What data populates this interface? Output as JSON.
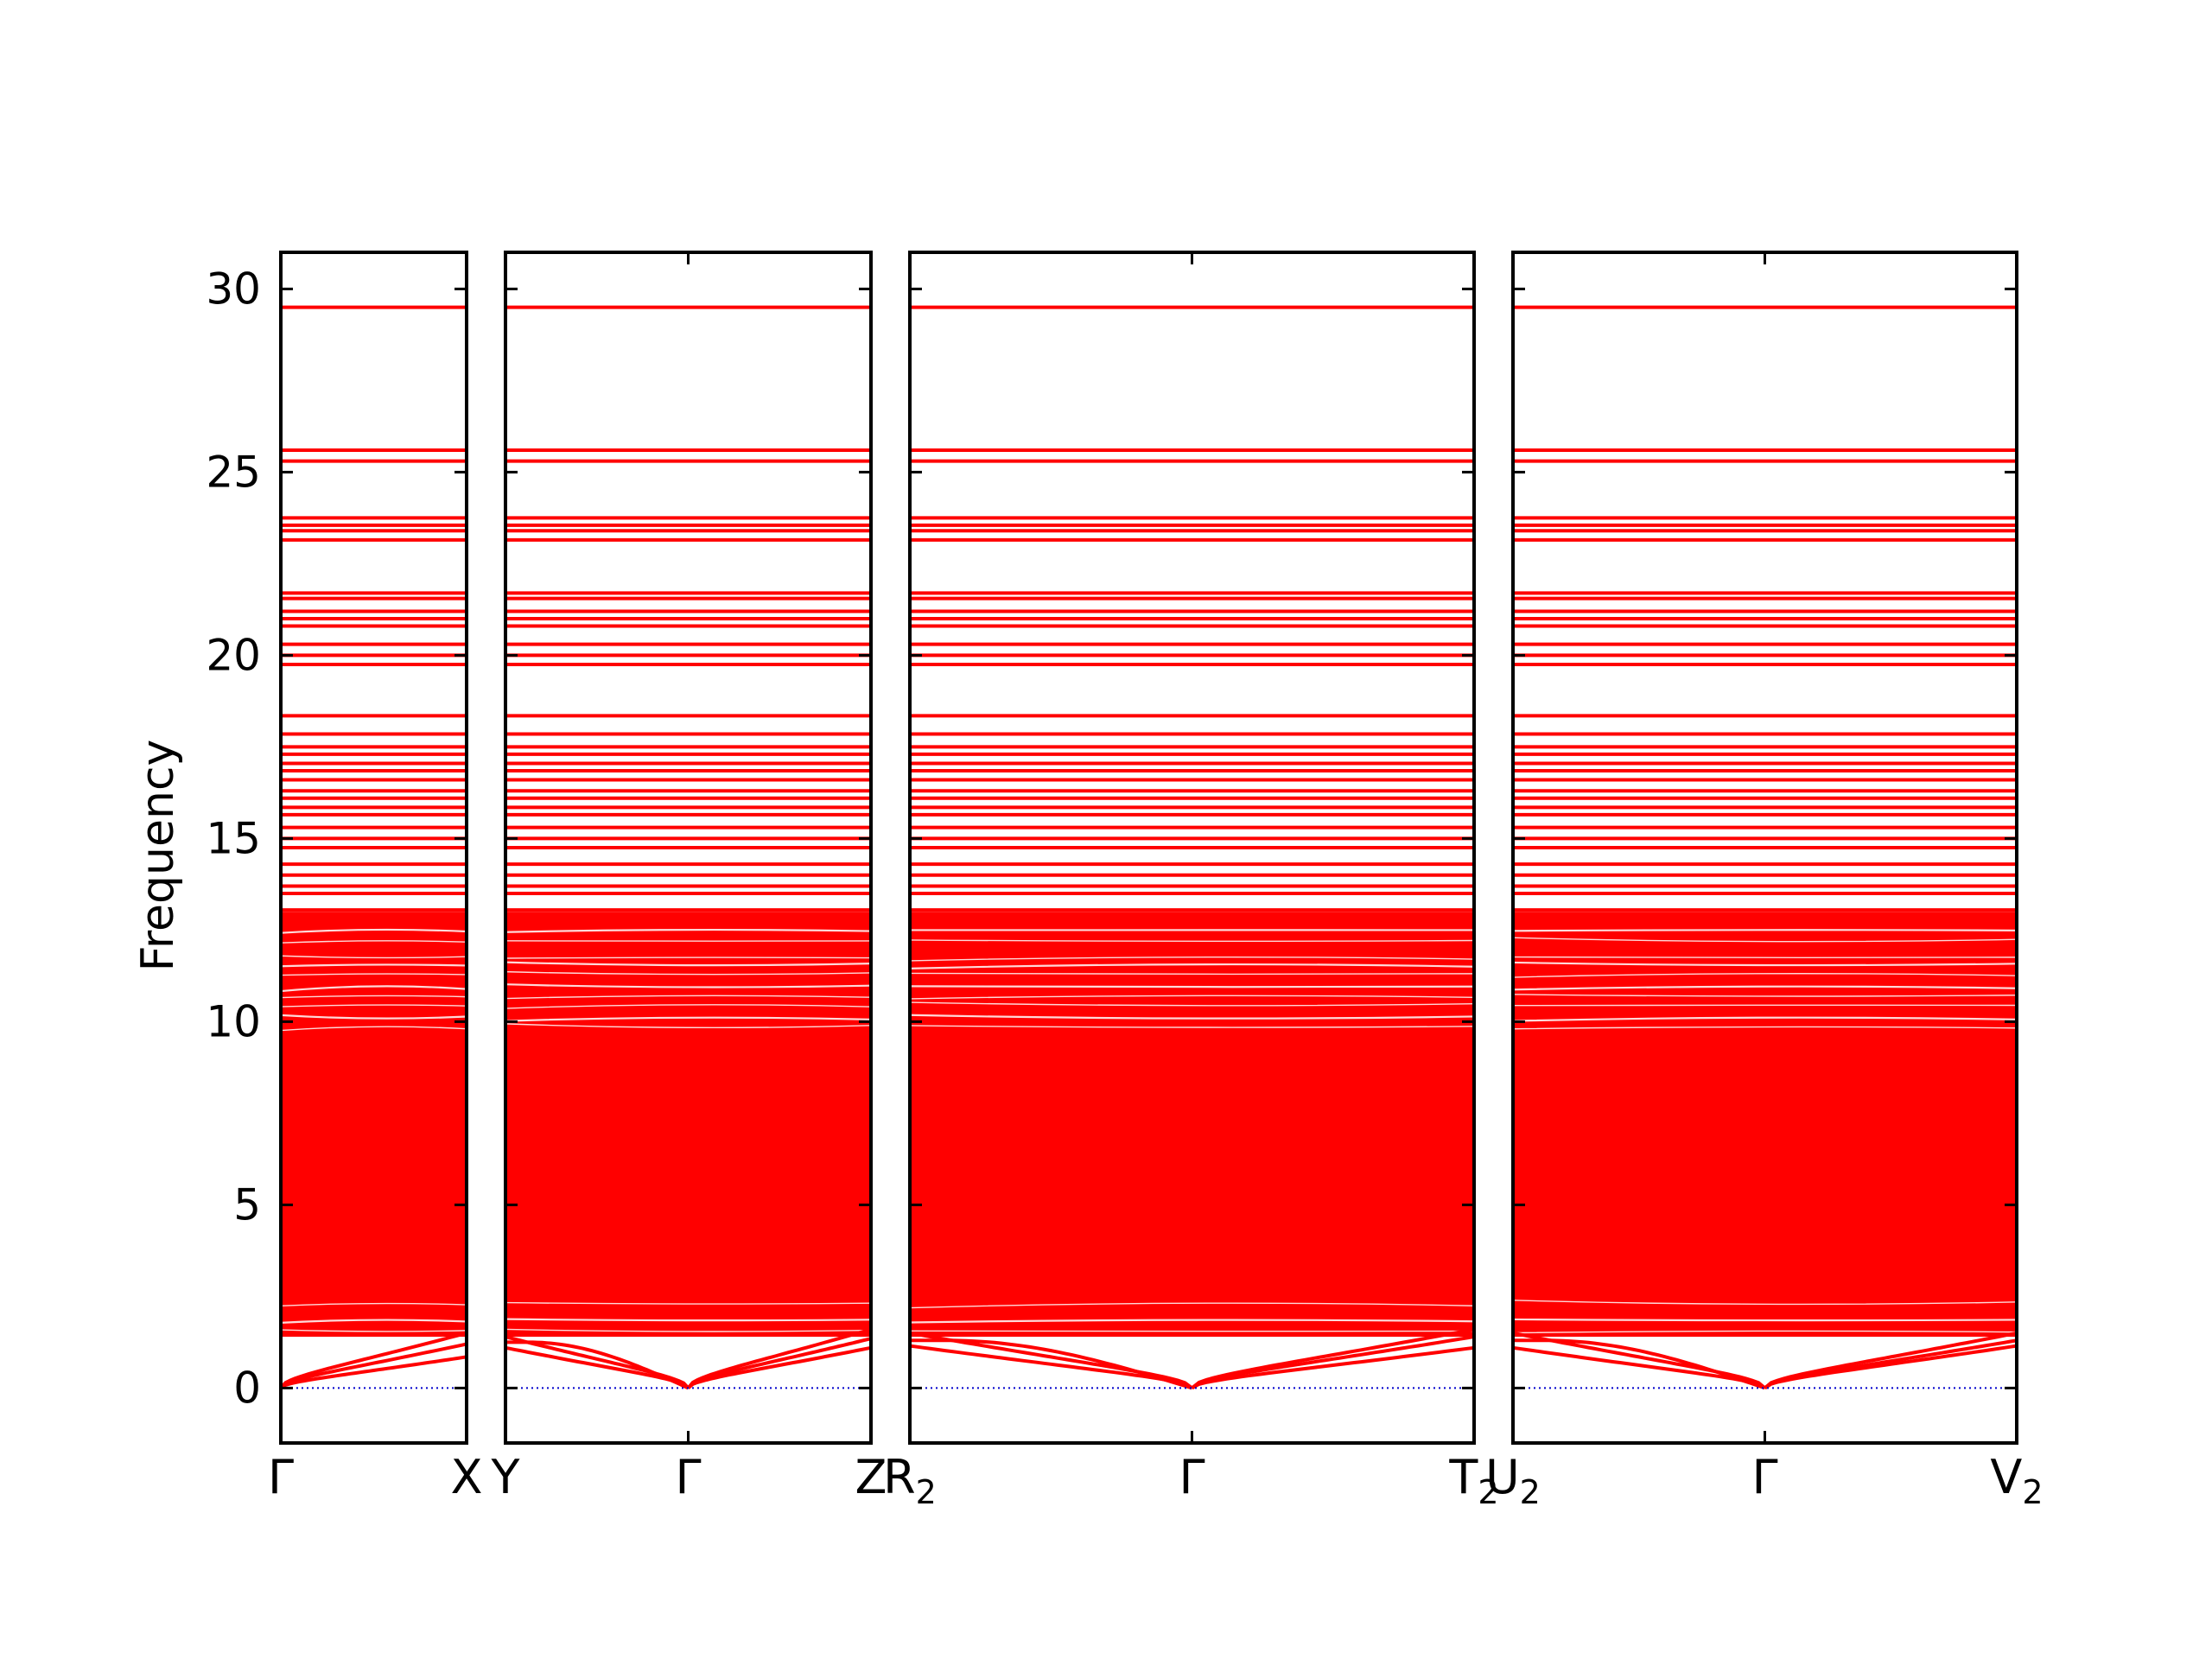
{
  "chart_data": {
    "type": "line",
    "title": "",
    "ylabel": "Frequency",
    "xlabel": "",
    "ylim": [
      -1.5,
      31
    ],
    "y_ticks": [
      0,
      5,
      10,
      15,
      20,
      25,
      30
    ],
    "y_tick_labels": [
      "0",
      "5",
      "10",
      "15",
      "20",
      "25",
      "30"
    ],
    "grid": false,
    "legend": "none",
    "colors": {
      "bands": "#ff0000",
      "zero_line": "#0000cc",
      "frame": "#000000"
    },
    "panels": [
      {
        "path": [
          "Γ",
          "X"
        ],
        "start_label": "Γ",
        "end_label": "X",
        "end_sub": "",
        "acoustic": [
          {
            "from": 0.0,
            "to": 0.85,
            "shape": "sqrt"
          },
          {
            "from": 0.0,
            "to": 1.2,
            "shape": "sqrt"
          },
          {
            "from": 0.0,
            "to": 1.5,
            "shape": "sqrt"
          }
        ]
      },
      {
        "path": [
          "Y",
          "Γ",
          "Z"
        ],
        "start_label": "Y",
        "mid_label": "Γ",
        "end_label": "Z",
        "end_sub": "",
        "acoustic": [
          {
            "from": 1.1,
            "to": 0.0,
            "shape": "sqrt"
          },
          {
            "from": 1.25,
            "to": 0.0,
            "shape": "bump"
          },
          {
            "from": 1.4,
            "to": 0.0,
            "shape": "sqrt"
          },
          {
            "from": 0.0,
            "to": 1.1,
            "shape": "sqrt"
          },
          {
            "from": 0.0,
            "to": 1.35,
            "shape": "sqrt"
          },
          {
            "from": 0.0,
            "to": 1.6,
            "shape": "sqrt"
          }
        ]
      },
      {
        "path": [
          "R₂",
          "Γ",
          "T₂"
        ],
        "start_label": "R",
        "start_sub": "2",
        "mid_label": "Γ",
        "end_label": "T",
        "end_sub": "2",
        "acoustic": [
          {
            "from": 1.15,
            "to": 0.0,
            "shape": "sqrt"
          },
          {
            "from": 1.3,
            "to": 0.0,
            "shape": "bump"
          },
          {
            "from": 1.5,
            "to": 0.0,
            "shape": "sqrt"
          },
          {
            "from": 0.0,
            "to": 1.1,
            "shape": "sqrt"
          },
          {
            "from": 0.0,
            "to": 1.4,
            "shape": "sqrt"
          },
          {
            "from": 0.0,
            "to": 1.6,
            "shape": "sqrt"
          }
        ]
      },
      {
        "path": [
          "U₂",
          "Γ",
          "V₂"
        ],
        "start_label": "U",
        "start_sub": "2",
        "mid_label": "Γ",
        "end_label": "V",
        "end_sub": "2",
        "acoustic": [
          {
            "from": 1.1,
            "to": 0.0,
            "shape": "sqrt"
          },
          {
            "from": 1.3,
            "to": 0.0,
            "shape": "bump"
          },
          {
            "from": 1.5,
            "to": 0.0,
            "shape": "sqrt"
          },
          {
            "from": 0.0,
            "to": 1.15,
            "shape": "sqrt"
          },
          {
            "from": 0.0,
            "to": 1.3,
            "shape": "sqrt"
          },
          {
            "from": 0.0,
            "to": 1.5,
            "shape": "sqrt"
          }
        ]
      }
    ],
    "dense_region": [
      1.4,
      13.0
    ],
    "flat_bands": [
      13.05,
      13.5,
      13.7,
      14.0,
      14.3,
      14.75,
      15.0,
      15.3,
      15.65,
      15.85,
      16.1,
      16.3,
      16.6,
      16.85,
      17.05,
      17.3,
      17.5,
      17.85,
      18.35,
      19.75,
      20.0,
      20.3,
      20.8,
      21.0,
      21.2,
      21.55,
      21.7,
      23.15,
      23.4,
      23.55,
      23.75,
      25.3,
      25.6,
      29.5
    ],
    "zero_line_value": 0
  }
}
